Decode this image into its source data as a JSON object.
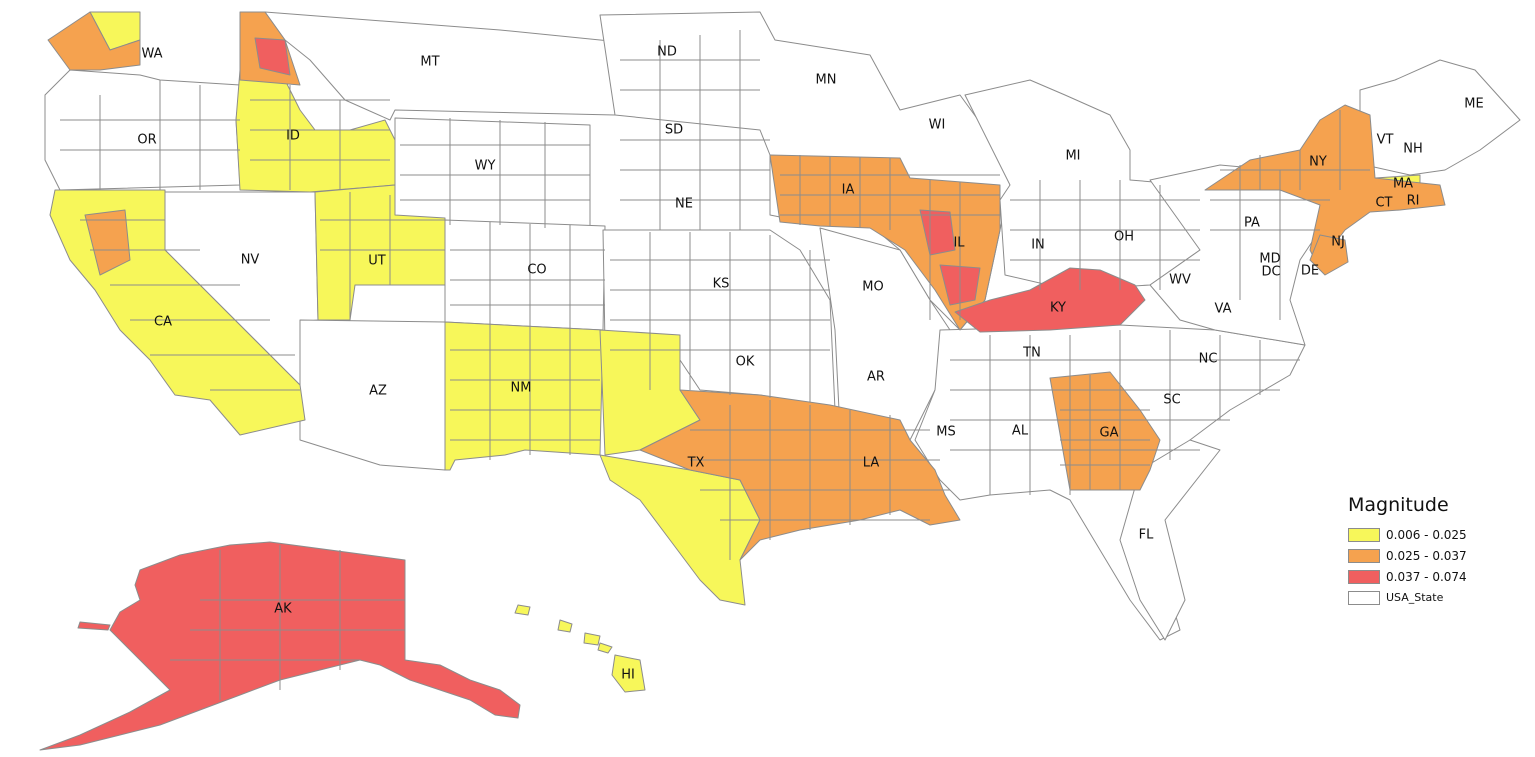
{
  "legend": {
    "title": "Magnitude",
    "items": [
      {
        "label": "0.006 - 0.025",
        "color": "#f7f75a"
      },
      {
        "label": "0.025 - 0.037",
        "color": "#f5a24f"
      },
      {
        "label": "0.037 - 0.074",
        "color": "#f05f5f"
      },
      {
        "label": "USA_State",
        "color": "#ffffff"
      }
    ]
  },
  "states": {
    "WA": "WA",
    "OR": "OR",
    "CA": "CA",
    "NV": "NV",
    "ID": "ID",
    "MT": "MT",
    "WY": "WY",
    "UT": "UT",
    "AZ": "AZ",
    "CO": "CO",
    "NM": "NM",
    "ND": "ND",
    "SD": "SD",
    "NE": "NE",
    "KS": "KS",
    "OK": "OK",
    "TX": "TX",
    "MN": "MN",
    "IA": "IA",
    "MO": "MO",
    "AR": "AR",
    "LA": "LA",
    "WI": "WI",
    "IL": "IL",
    "MS": "MS",
    "MI": "MI",
    "IN": "IN",
    "KY": "KY",
    "TN": "TN",
    "AL": "AL",
    "OH": "OH",
    "GA": "GA",
    "FL": "FL",
    "SC": "SC",
    "NC": "NC",
    "WV": "WV",
    "VA": "VA",
    "PA": "PA",
    "NY": "NY",
    "MD": "MD",
    "DC": "DC",
    "DE": "DE",
    "NJ": "NJ",
    "CT": "CT",
    "RI": "RI",
    "MA": "MA",
    "VT": "VT",
    "NH": "NH",
    "ME": "ME",
    "AK": "AK",
    "HI": "HI"
  }
}
